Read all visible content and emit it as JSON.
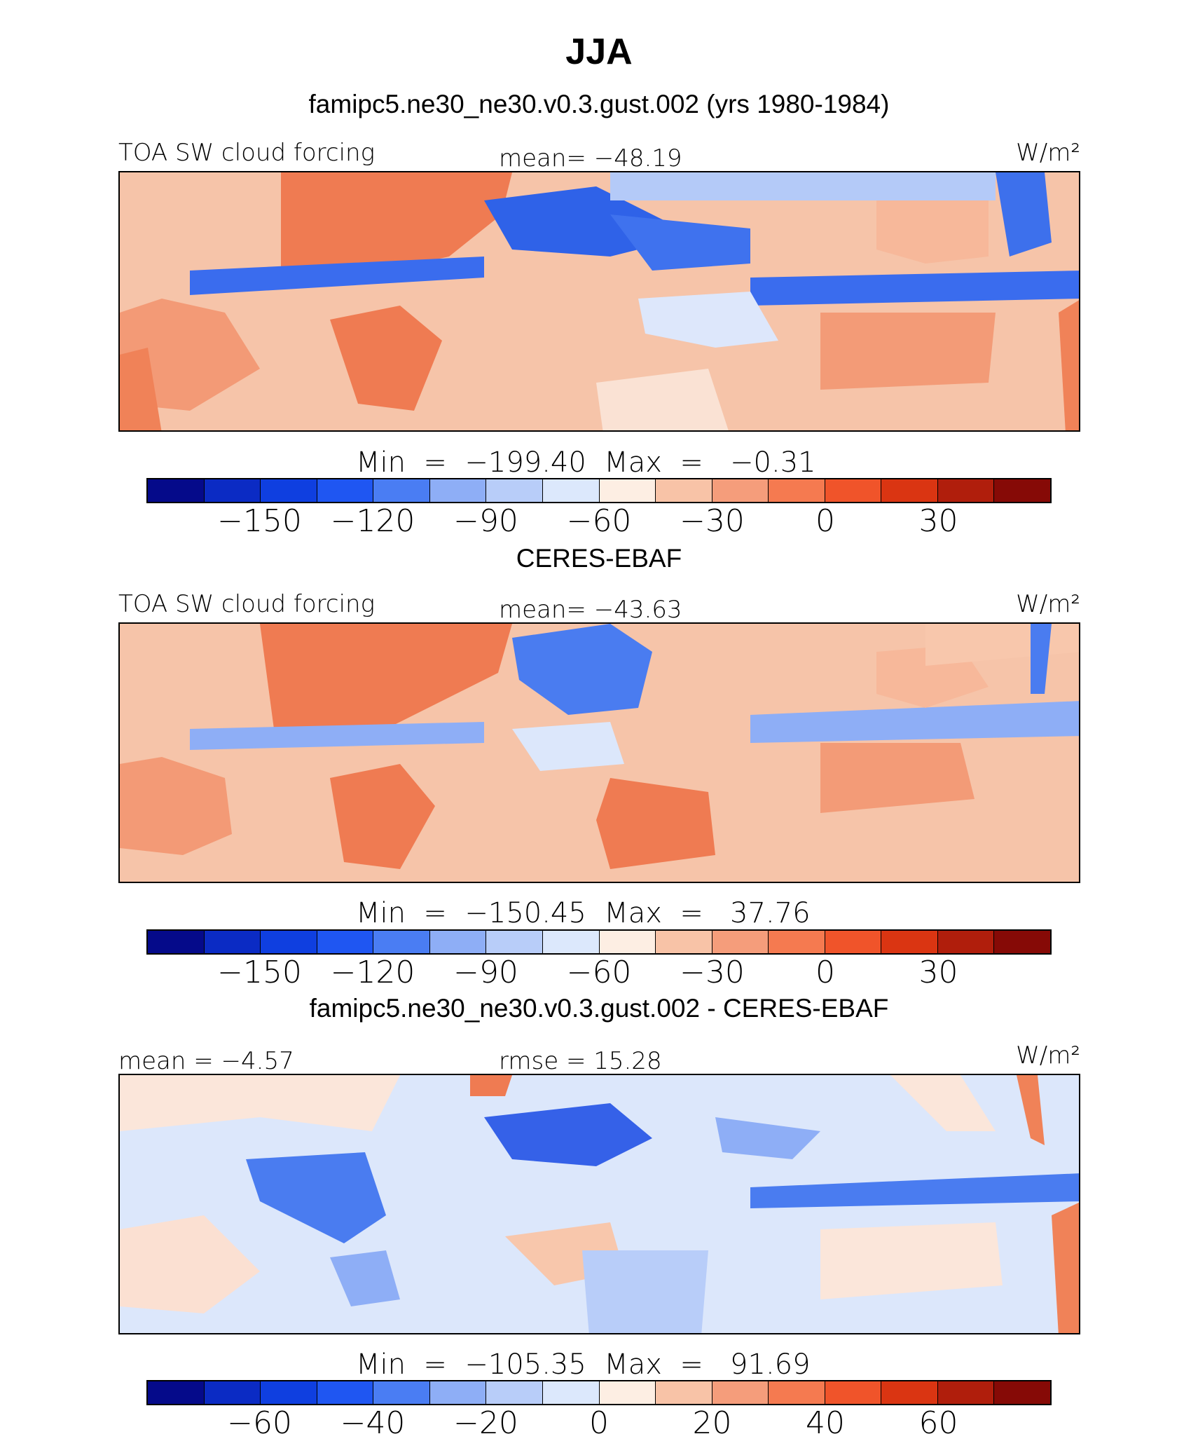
{
  "title": "JJA",
  "panels": [
    {
      "subtitle": "famipc5.ne30_ne30.v0.3.gust.002 (yrs 1980-1984)",
      "left_label": "TOA SW cloud forcing",
      "center_label": "mean= −48.19",
      "units_label": "W/m²",
      "minmax_label": "Min  =  −199.40  Max  =   −0.31",
      "colorbar": {
        "colors": [
          "#050a8a",
          "#0b2bc4",
          "#0f3fe0",
          "#1f56f2",
          "#4a7df3",
          "#8eaef6",
          "#b8cdf9",
          "#dce8fc",
          "#fdeee3",
          "#f8c3a7",
          "#f59d7b",
          "#f57a50",
          "#f0542a",
          "#da3512",
          "#b01e0c",
          "#860a06"
        ],
        "ticks": [
          "−150",
          "−120",
          "−90",
          "−60",
          "−30",
          "0",
          "30"
        ]
      }
    },
    {
      "subtitle": "CERES-EBAF",
      "left_label": "TOA SW cloud forcing",
      "center_label": "mean= −43.63",
      "units_label": "W/m²",
      "minmax_label": "Min  =  −150.45  Max  =   37.76",
      "colorbar": {
        "colors": [
          "#050a8a",
          "#0b2bc4",
          "#0f3fe0",
          "#1f56f2",
          "#4a7df3",
          "#8eaef6",
          "#b8cdf9",
          "#dce8fc",
          "#fdeee3",
          "#f8c3a7",
          "#f59d7b",
          "#f57a50",
          "#f0542a",
          "#da3512",
          "#b01e0c",
          "#860a06"
        ],
        "ticks": [
          "−150",
          "−120",
          "−90",
          "−60",
          "−30",
          "0",
          "30"
        ]
      }
    },
    {
      "subtitle": "famipc5.ne30_ne30.v0.3.gust.002 - CERES-EBAF",
      "left_label": "mean  =   −4.57",
      "center_label": "rmse  =   15.28",
      "units_label": "W/m²",
      "minmax_label": "Min  =  −105.35  Max  =   91.69",
      "colorbar": {
        "colors": [
          "#050a8a",
          "#0b2bc4",
          "#0f3fe0",
          "#1f56f2",
          "#4a7df3",
          "#8eaef6",
          "#b8cdf9",
          "#dce8fc",
          "#fdeee3",
          "#f8c3a7",
          "#f59d7b",
          "#f57a50",
          "#f0542a",
          "#da3512",
          "#b01e0c",
          "#860a06"
        ],
        "ticks": [
          "−60",
          "−40",
          "−20",
          "0",
          "20",
          "40",
          "60"
        ]
      }
    }
  ]
}
